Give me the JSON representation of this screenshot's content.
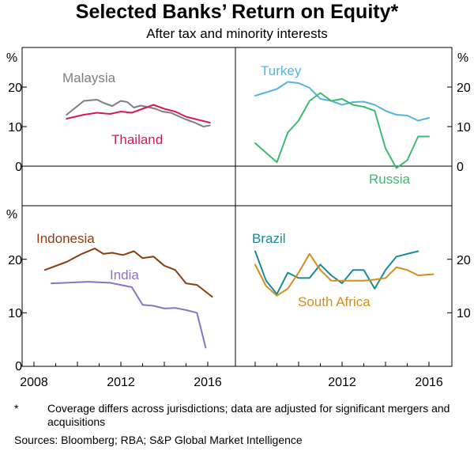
{
  "title": "Selected Banks’ Return on Equity*",
  "subtitle": "After tax and minority interests",
  "footnote": {
    "marker": "*",
    "text": "Coverage differs across jurisdictions; data are adjusted for significant mergers and acquisitions"
  },
  "sources": "Sources:  Bloomberg; RBA; S&P Global Market Intelligence",
  "colors": {
    "malaysia": "#7f7f7f",
    "thailand": "#d6195b",
    "turkey": "#55b4e0",
    "russia": "#3cba70",
    "indonesia": "#8a3e16",
    "india": "#8c72c6",
    "brazil": "#1a8a99",
    "south_africa": "#d18f1e",
    "axis": "#000000"
  },
  "chart_data": [
    {
      "type": "line",
      "panel": "top-left",
      "unit_label": "%",
      "ylim": [
        -10,
        30
      ],
      "yticks": [
        "20",
        "10",
        "0"
      ],
      "series": [
        {
          "name": "Malaysia",
          "color_key": "malaysia",
          "x": [
            2009.5,
            2010.3,
            2010.9,
            2011.2,
            2011.6,
            2012.0,
            2012.3,
            2012.6,
            2012.9,
            2013.2,
            2013.6,
            2013.9,
            2014.3,
            2014.7,
            2015.0,
            2015.4,
            2015.8,
            2016.1
          ],
          "y": [
            13.0,
            16.5,
            16.8,
            16.0,
            15.2,
            16.5,
            16.2,
            14.8,
            15.3,
            15.0,
            14.5,
            13.8,
            13.5,
            12.5,
            11.8,
            11.0,
            10.0,
            10.3
          ]
        },
        {
          "name": "Thailand",
          "color_key": "thailand",
          "x": [
            2009.5,
            2010.3,
            2010.9,
            2011.5,
            2012.0,
            2012.5,
            2013.0,
            2013.5,
            2014.0,
            2014.5,
            2015.0,
            2015.5,
            2016.1
          ],
          "y": [
            12.0,
            13.0,
            13.5,
            13.2,
            13.8,
            13.5,
            14.5,
            15.5,
            14.5,
            13.8,
            12.5,
            11.8,
            11.0
          ]
        }
      ]
    },
    {
      "type": "line",
      "panel": "top-right",
      "unit_label": "%",
      "ylim": [
        -10,
        30
      ],
      "yticks": [
        "20",
        "10",
        "0"
      ],
      "series": [
        {
          "name": "Turkey",
          "color_key": "turkey",
          "x": [
            2008,
            2009,
            2009.5,
            2010,
            2010.5,
            2011,
            2011.5,
            2012,
            2012.5,
            2013,
            2013.5,
            2014,
            2014.5,
            2015,
            2015.5,
            2016
          ],
          "y": [
            17.8,
            19.5,
            21.3,
            21.0,
            19.8,
            17.0,
            16.5,
            15.5,
            16.2,
            16.3,
            15.5,
            14.0,
            13.0,
            12.8,
            11.5,
            12.2
          ]
        },
        {
          "name": "Russia",
          "color_key": "russia",
          "x": [
            2008,
            2009,
            2009.5,
            2010,
            2010.5,
            2011,
            2011.5,
            2012,
            2012.5,
            2013,
            2013.5,
            2014,
            2014.5,
            2015,
            2015.5,
            2016
          ],
          "y": [
            5.8,
            1.0,
            8.5,
            11.5,
            16.5,
            18.5,
            16.5,
            17.0,
            15.5,
            15.0,
            14.0,
            4.5,
            -0.5,
            1.5,
            7.5,
            7.5
          ]
        }
      ]
    },
    {
      "type": "line",
      "panel": "bottom-left",
      "unit_label": "%",
      "ylim": [
        0,
        30
      ],
      "yticks": [
        "20",
        "10",
        "0"
      ],
      "xticks": [
        "2008",
        "2012",
        "2016"
      ],
      "series": [
        {
          "name": "Indonesia",
          "color_key": "indonesia",
          "x": [
            2008.5,
            2009.5,
            2010.2,
            2010.8,
            2011.2,
            2011.6,
            2012.1,
            2012.6,
            2013.0,
            2013.5,
            2014.0,
            2014.5,
            2015.0,
            2015.5,
            2016.2
          ],
          "y": [
            18.0,
            19.5,
            21.0,
            22.0,
            21.0,
            21.2,
            20.8,
            21.5,
            20.2,
            20.5,
            18.8,
            18.0,
            15.5,
            15.2,
            13.0
          ]
        },
        {
          "name": "India",
          "color_key": "india",
          "x": [
            2008.8,
            2009.5,
            2010.5,
            2011.5,
            2012.0,
            2012.5,
            2013.0,
            2013.5,
            2014.0,
            2014.5,
            2015.0,
            2015.5,
            2015.9
          ],
          "y": [
            15.5,
            15.6,
            15.8,
            15.6,
            15.2,
            14.8,
            11.5,
            11.3,
            10.8,
            10.9,
            10.5,
            10.0,
            3.5
          ]
        }
      ]
    },
    {
      "type": "line",
      "panel": "bottom-right",
      "unit_label": "",
      "ylim": [
        0,
        30
      ],
      "yticks": [
        "20",
        "10"
      ],
      "xticks": [
        "2012",
        "2016"
      ],
      "series": [
        {
          "name": "Brazil",
          "color_key": "brazil",
          "x": [
            2008,
            2008.5,
            2009,
            2009.5,
            2010,
            2010.5,
            2011,
            2011.5,
            2012,
            2012.5,
            2013,
            2013.5,
            2014,
            2014.5,
            2015,
            2015.5
          ],
          "y": [
            21.5,
            16.0,
            13.5,
            17.5,
            16.5,
            16.5,
            19.0,
            17.0,
            15.5,
            18.0,
            18.0,
            14.5,
            18.0,
            20.5,
            21.0,
            21.5
          ]
        },
        {
          "name": "South Africa",
          "color_key": "south_africa",
          "x": [
            2008,
            2008.5,
            2009,
            2009.5,
            2010,
            2010.5,
            2011,
            2011.5,
            2012,
            2012.5,
            2013,
            2013.5,
            2014,
            2014.5,
            2015,
            2015.5,
            2016.2
          ],
          "y": [
            19.0,
            15.0,
            13.2,
            14.5,
            17.5,
            21.0,
            18.0,
            16.0,
            16.0,
            16.0,
            16.0,
            16.2,
            16.5,
            18.5,
            18.0,
            17.0,
            17.2
          ]
        }
      ]
    }
  ]
}
